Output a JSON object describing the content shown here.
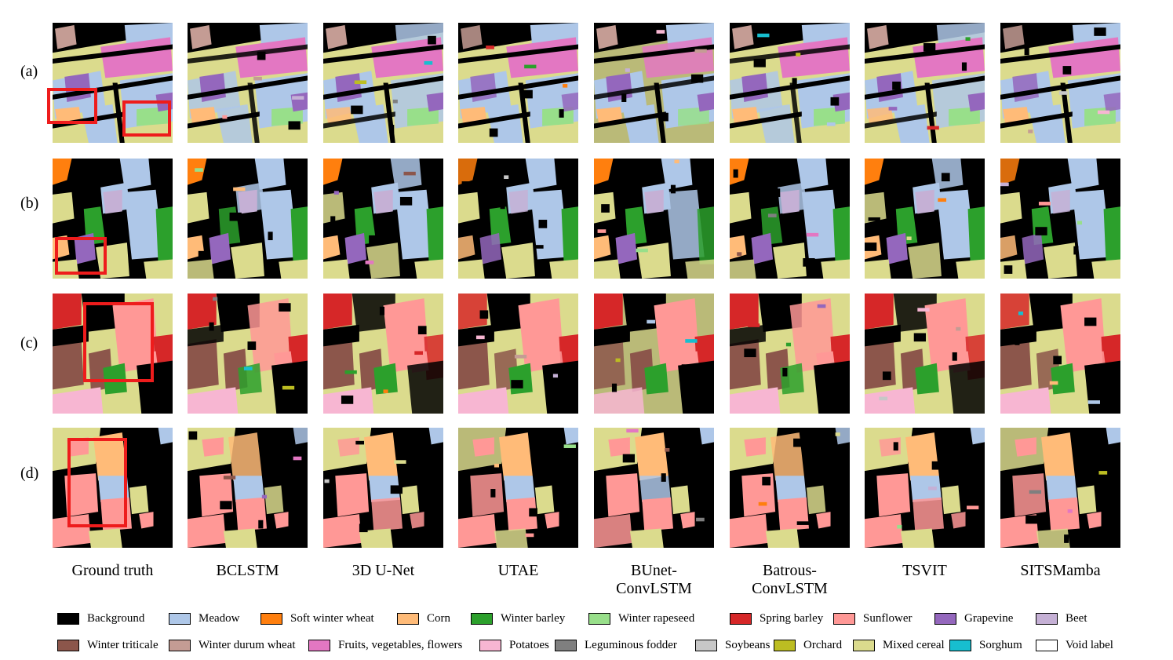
{
  "rows": [
    "(a)",
    "(b)",
    "(c)",
    "(d)"
  ],
  "columns": [
    "Ground truth",
    "BCLSTM",
    "3D U-Net",
    "UTAE",
    "BUnet-\nConvLSTM",
    "Batrous-\nConvLSTM",
    "TSVIT",
    "SITSMamba"
  ],
  "legend": [
    {
      "label": "Background",
      "color": "#000000"
    },
    {
      "label": "Meadow",
      "color": "#aec7e8"
    },
    {
      "label": "Soft winter wheat",
      "color": "#ff7f0e"
    },
    {
      "label": "Corn",
      "color": "#ffbb78"
    },
    {
      "label": "Winter barley",
      "color": "#2ca02c"
    },
    {
      "label": "Winter rapeseed",
      "color": "#98df8a"
    },
    {
      "label": "Spring barley",
      "color": "#d62728"
    },
    {
      "label": "Sunflower",
      "color": "#ff9896"
    },
    {
      "label": "Grapevine",
      "color": "#9467bd"
    },
    {
      "label": "Beet",
      "color": "#c5b0d5"
    },
    {
      "label": "Winter triticale",
      "color": "#8c564b"
    },
    {
      "label": "Winter durum wheat",
      "color": "#c49c94"
    },
    {
      "label": "Fruits, vegetables, flowers",
      "color": "#e377c2"
    },
    {
      "label": "Potatoes",
      "color": "#f7b6d2"
    },
    {
      "label": "Leguminous fodder",
      "color": "#7f7f7f"
    },
    {
      "label": "Soybeans",
      "color": "#c7c7c7"
    },
    {
      "label": "Orchard",
      "color": "#bcbd22"
    },
    {
      "label": "Mixed cereal",
      "color": "#dbdb8d"
    },
    {
      "label": "Sorghum",
      "color": "#17becf"
    },
    {
      "label": "Void label",
      "color": "#ffffff"
    }
  ],
  "colors": {
    "highlight": "#ee1c1c"
  }
}
